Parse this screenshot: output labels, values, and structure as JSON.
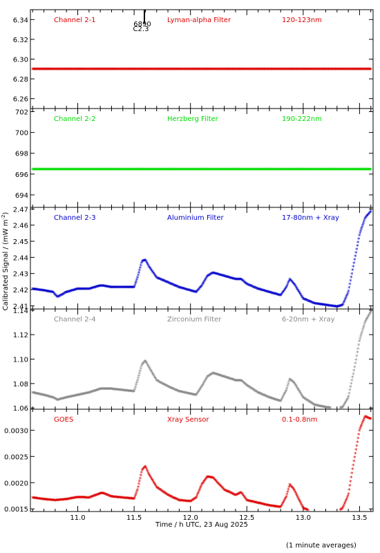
{
  "figure": {
    "xlabel": "Time / h UTC, 23 Aug 2025",
    "ylabel": "Calibrated Signal / (mW m",
    "ylabel_sup": "-2",
    "ylabel_close": ")",
    "footnote": "(1 minute averages)",
    "flare_label": "6890",
    "flare_class": "C2.3"
  },
  "chart_data": [
    {
      "type": "scatter",
      "panel": "channel-2-1",
      "labels": [
        "Channel 2-1",
        "Lyman-alpha Filter",
        "120-123nm"
      ],
      "color": "#dd0000",
      "ylim": [
        6.25,
        6.35
      ],
      "yticks": [
        6.26,
        6.28,
        6.3,
        6.32,
        6.34
      ],
      "ytick_labels": [
        "6.26",
        "6.28",
        "6.30",
        "6.32",
        "6.34"
      ],
      "xlim": [
        10.58,
        13.62
      ],
      "x": [
        10.6,
        13.6
      ],
      "y": [
        6.289,
        6.289
      ]
    },
    {
      "type": "scatter",
      "panel": "channel-2-2",
      "labels": [
        "Channel 2-2",
        "Herzberg Filter",
        "190-222nm"
      ],
      "color": "#00dd00",
      "ylim": [
        692.8,
        702.3
      ],
      "yticks": [
        694,
        696,
        698,
        700,
        702
      ],
      "ytick_labels": [
        "694",
        "696",
        "698",
        "700",
        "702"
      ],
      "xlim": [
        10.58,
        13.62
      ],
      "x": [
        10.6,
        13.6
      ],
      "y": [
        696.4,
        696.4
      ]
    },
    {
      "type": "scatter",
      "panel": "channel-2-3",
      "labels": [
        "Channel 2-3",
        "Aluminium Filter",
        "17-80nm + Xray"
      ],
      "color": "#0000cc",
      "ylim": [
        2.408,
        2.471
      ],
      "yticks": [
        2.41,
        2.42,
        2.43,
        2.44,
        2.45,
        2.46,
        2.47
      ],
      "ytick_labels": [
        "2.41",
        "2.42",
        "2.43",
        "2.44",
        "2.45",
        "2.46",
        "2.47"
      ],
      "xlim": [
        10.58,
        13.62
      ],
      "x": [
        10.6,
        10.7,
        10.78,
        10.82,
        10.9,
        11.0,
        11.1,
        11.2,
        11.22,
        11.3,
        11.4,
        11.5,
        11.53,
        11.57,
        11.6,
        11.63,
        11.7,
        11.8,
        11.9,
        12.0,
        12.05,
        12.1,
        12.15,
        12.2,
        12.3,
        12.4,
        12.45,
        12.5,
        12.6,
        12.7,
        12.8,
        12.85,
        12.88,
        12.92,
        13.0,
        13.1,
        13.2,
        13.3,
        13.35,
        13.4,
        13.45,
        13.5,
        13.55,
        13.6
      ],
      "y": [
        2.42,
        2.419,
        2.418,
        2.415,
        2.418,
        2.42,
        2.42,
        2.422,
        2.422,
        2.421,
        2.421,
        2.421,
        2.427,
        2.437,
        2.438,
        2.434,
        2.427,
        2.424,
        2.421,
        2.419,
        2.418,
        2.422,
        2.428,
        2.43,
        2.428,
        2.426,
        2.426,
        2.423,
        2.42,
        2.418,
        2.416,
        2.421,
        2.426,
        2.423,
        2.414,
        2.411,
        2.41,
        2.409,
        2.41,
        2.418,
        2.436,
        2.454,
        2.464,
        2.468
      ]
    },
    {
      "type": "scatter",
      "panel": "channel-2-4",
      "labels": [
        "Channel 2-4",
        "Zirconium Filter",
        "6-20nm + Xray"
      ],
      "color": "#888888",
      "ylim": [
        1.059,
        1.141
      ],
      "yticks": [
        1.06,
        1.08,
        1.1,
        1.12,
        1.14
      ],
      "ytick_labels": [
        "1.06",
        "1.08",
        "1.10",
        "1.12",
        "1.14"
      ],
      "xlim": [
        10.58,
        13.62
      ],
      "x": [
        10.6,
        10.7,
        10.78,
        10.82,
        10.9,
        11.0,
        11.1,
        11.2,
        11.22,
        11.3,
        11.4,
        11.5,
        11.53,
        11.57,
        11.6,
        11.63,
        11.7,
        11.8,
        11.9,
        12.0,
        12.05,
        12.1,
        12.15,
        12.2,
        12.3,
        12.4,
        12.45,
        12.5,
        12.6,
        12.7,
        12.8,
        12.85,
        12.88,
        12.92,
        13.0,
        13.1,
        13.2,
        13.3,
        13.35,
        13.4,
        13.45,
        13.5,
        13.55,
        13.6
      ],
      "y": [
        1.072,
        1.07,
        1.068,
        1.066,
        1.068,
        1.07,
        1.072,
        1.075,
        1.075,
        1.075,
        1.074,
        1.073,
        1.082,
        1.095,
        1.098,
        1.093,
        1.082,
        1.077,
        1.073,
        1.071,
        1.07,
        1.077,
        1.085,
        1.088,
        1.085,
        1.082,
        1.082,
        1.078,
        1.072,
        1.068,
        1.065,
        1.074,
        1.083,
        1.08,
        1.068,
        1.062,
        1.06,
        1.059,
        1.06,
        1.068,
        1.09,
        1.115,
        1.13,
        1.138
      ]
    },
    {
      "type": "scatter",
      "panel": "goes",
      "labels": [
        "GOES",
        "Xray Sensor",
        "0.1-0.8nm"
      ],
      "color": "#dd0000",
      "ylim": [
        0.00145,
        0.0034
      ],
      "yticks": [
        0.0015,
        0.002,
        0.0025,
        0.003
      ],
      "ytick_labels": [
        "0.0015",
        "0.0020",
        "0.0025",
        "0.0030"
      ],
      "xlim": [
        10.58,
        13.62
      ],
      "xticks": [
        11.0,
        11.5,
        12.0,
        12.5,
        13.0,
        13.5
      ],
      "xtick_labels": [
        "11.0",
        "11.5",
        "12.0",
        "12.5",
        "13.0",
        "13.5"
      ],
      "x": [
        10.6,
        10.7,
        10.8,
        10.9,
        11.0,
        11.1,
        11.2,
        11.22,
        11.3,
        11.4,
        11.5,
        11.53,
        11.57,
        11.6,
        11.63,
        11.7,
        11.8,
        11.9,
        12.0,
        12.05,
        12.1,
        12.15,
        12.2,
        12.3,
        12.4,
        12.45,
        12.5,
        12.6,
        12.7,
        12.8,
        12.85,
        12.88,
        12.92,
        13.0,
        13.1,
        13.2,
        13.3,
        13.35,
        13.4,
        13.45,
        13.5,
        13.55,
        13.6
      ],
      "y": [
        0.0017,
        0.00167,
        0.00165,
        0.00167,
        0.00171,
        0.0017,
        0.00178,
        0.00179,
        0.00172,
        0.0017,
        0.00168,
        0.00185,
        0.00222,
        0.0023,
        0.00215,
        0.0019,
        0.00175,
        0.00165,
        0.00163,
        0.0017,
        0.00195,
        0.0021,
        0.00208,
        0.00185,
        0.00175,
        0.0018,
        0.00165,
        0.0016,
        0.00155,
        0.00152,
        0.00172,
        0.00195,
        0.00185,
        0.0015,
        0.00142,
        0.0014,
        0.00142,
        0.0015,
        0.00175,
        0.0024,
        0.003,
        0.00325,
        0.0032
      ]
    }
  ]
}
